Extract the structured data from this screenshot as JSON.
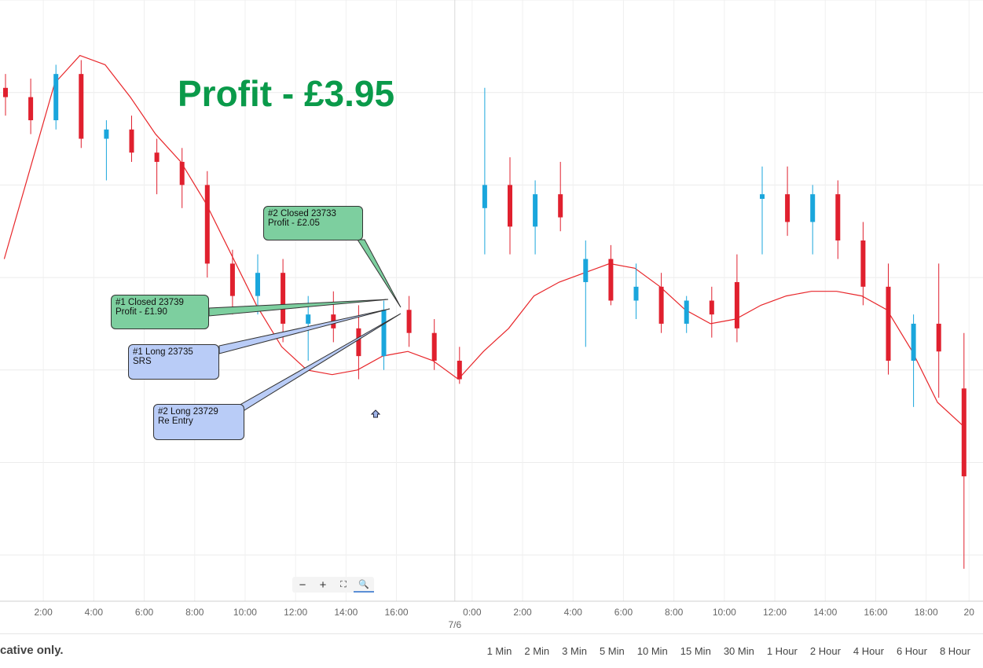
{
  "title": "Profit - £3.95",
  "colors": {
    "up": "#1aa6dc",
    "down": "#e0202e",
    "ma": "#e8262a",
    "title": "#0a9a4a"
  },
  "chart_data": {
    "type": "candlestick",
    "ylim": [
      23670,
      23800
    ],
    "x_ticks": [
      {
        "i": 1.5,
        "label": "2:00"
      },
      {
        "i": 3.5,
        "label": "4:00"
      },
      {
        "i": 5.5,
        "label": "6:00"
      },
      {
        "i": 7.5,
        "label": "8:00"
      },
      {
        "i": 9.5,
        "label": "10:00"
      },
      {
        "i": 11.5,
        "label": "12:00"
      },
      {
        "i": 13.5,
        "label": "14:00"
      },
      {
        "i": 15.5,
        "label": "16:00"
      },
      {
        "i": 18.5,
        "label": "0:00"
      },
      {
        "i": 20.5,
        "label": "2:00"
      },
      {
        "i": 22.5,
        "label": "4:00"
      },
      {
        "i": 24.5,
        "label": "6:00"
      },
      {
        "i": 26.5,
        "label": "8:00"
      },
      {
        "i": 28.5,
        "label": "10:00"
      },
      {
        "i": 30.5,
        "label": "12:00"
      },
      {
        "i": 32.5,
        "label": "14:00"
      },
      {
        "i": 34.5,
        "label": "16:00"
      },
      {
        "i": 36.5,
        "label": "18:00"
      },
      {
        "i": 38.2,
        "label": "20"
      }
    ],
    "date_marker": {
      "i": 18,
      "label": "7/6"
    },
    "candles": [
      {
        "o": 23781,
        "h": 23784,
        "l": 23775,
        "c": 23779
      },
      {
        "o": 23779,
        "h": 23783,
        "l": 23771,
        "c": 23774
      },
      {
        "o": 23774,
        "h": 23786,
        "l": 23772,
        "c": 23784
      },
      {
        "o": 23784,
        "h": 23787,
        "l": 23768,
        "c": 23770
      },
      {
        "o": 23770,
        "h": 23774,
        "l": 23761,
        "c": 23772
      },
      {
        "o": 23772,
        "h": 23775,
        "l": 23765,
        "c": 23767
      },
      {
        "o": 23767,
        "h": 23770,
        "l": 23758,
        "c": 23765
      },
      {
        "o": 23765,
        "h": 23768,
        "l": 23755,
        "c": 23760
      },
      {
        "o": 23760,
        "h": 23763,
        "l": 23740,
        "c": 23743
      },
      {
        "o": 23743,
        "h": 23746,
        "l": 23732,
        "c": 23736
      },
      {
        "o": 23736,
        "h": 23745,
        "l": 23732,
        "c": 23741
      },
      {
        "o": 23741,
        "h": 23744,
        "l": 23726,
        "c": 23730
      },
      {
        "o": 23730,
        "h": 23736,
        "l": 23722,
        "c": 23732
      },
      {
        "o": 23732,
        "h": 23737,
        "l": 23726,
        "c": 23729
      },
      {
        "o": 23729,
        "h": 23734,
        "l": 23718,
        "c": 23723
      },
      {
        "o": 23723,
        "h": 23735,
        "l": 23720,
        "c": 23733
      },
      {
        "o": 23733,
        "h": 23736,
        "l": 23725,
        "c": 23728
      },
      {
        "o": 23728,
        "h": 23731,
        "l": 23720,
        "c": 23722
      },
      {
        "o": 23722,
        "h": 23725,
        "l": 23717,
        "c": 23718
      },
      {
        "o": 23755,
        "h": 23781,
        "l": 23745,
        "c": 23760
      },
      {
        "o": 23760,
        "h": 23766,
        "l": 23745,
        "c": 23751
      },
      {
        "o": 23751,
        "h": 23761,
        "l": 23745,
        "c": 23758
      },
      {
        "o": 23758,
        "h": 23765,
        "l": 23750,
        "c": 23753
      },
      {
        "o": 23739,
        "h": 23748,
        "l": 23725,
        "c": 23744
      },
      {
        "o": 23744,
        "h": 23747,
        "l": 23734,
        "c": 23735
      },
      {
        "o": 23735,
        "h": 23743,
        "l": 23731,
        "c": 23738
      },
      {
        "o": 23738,
        "h": 23741,
        "l": 23728,
        "c": 23730
      },
      {
        "o": 23730,
        "h": 23736,
        "l": 23728,
        "c": 23735
      },
      {
        "o": 23735,
        "h": 23738,
        "l": 23727,
        "c": 23732
      },
      {
        "o": 23739,
        "h": 23745,
        "l": 23726,
        "c": 23729
      },
      {
        "o": 23757,
        "h": 23764,
        "l": 23745,
        "c": 23758
      },
      {
        "o": 23758,
        "h": 23764,
        "l": 23749,
        "c": 23752
      },
      {
        "o": 23752,
        "h": 23760,
        "l": 23745,
        "c": 23758
      },
      {
        "o": 23758,
        "h": 23761,
        "l": 23744,
        "c": 23748
      },
      {
        "o": 23748,
        "h": 23752,
        "l": 23734,
        "c": 23738
      },
      {
        "o": 23738,
        "h": 23743,
        "l": 23719,
        "c": 23722
      },
      {
        "o": 23722,
        "h": 23732,
        "l": 23712,
        "c": 23730
      },
      {
        "o": 23730,
        "h": 23743,
        "l": 23714,
        "c": 23724
      },
      {
        "o": 23716,
        "h": 23728,
        "l": 23677,
        "c": 23697
      }
    ],
    "moving_average": [
      23744,
      23763,
      23782,
      23788,
      23786,
      23779,
      23771,
      23765,
      23756,
      23745,
      23734,
      23725,
      23720,
      23719,
      23720,
      23723,
      23724,
      23722,
      23718,
      23724,
      23729,
      23736,
      23739,
      23741,
      23743,
      23742,
      23738,
      23733,
      23730,
      23731,
      23734,
      23736,
      23737,
      23737,
      23736,
      23733,
      23724,
      23713,
      23708
    ],
    "ma_x_start": -0.05
  },
  "annotations": [
    {
      "id": "closed2",
      "line1": "#2 Closed 23733",
      "line2": "Profit - £2.05",
      "color": "green"
    },
    {
      "id": "closed1",
      "line1": "#1 Closed 23739",
      "line2": "Profit - £1.90",
      "color": "green"
    },
    {
      "id": "long1",
      "line1": "#1 Long 23735",
      "line2": "SRS",
      "color": "blue"
    },
    {
      "id": "long2",
      "line1": "#2 Long 23729",
      "line2": "Re Entry",
      "color": "blue"
    }
  ],
  "zoom_controls": {
    "minus": "−",
    "plus": "+",
    "fit": "⛶",
    "zoom": "🔍"
  },
  "footer": {
    "note": "cative only.",
    "timeframes": [
      "1 Min",
      "2 Min",
      "3 Min",
      "5 Min",
      "10 Min",
      "15 Min",
      "30 Min",
      "1 Hour",
      "2 Hour",
      "4 Hour",
      "6 Hour",
      "8 Hour"
    ]
  }
}
